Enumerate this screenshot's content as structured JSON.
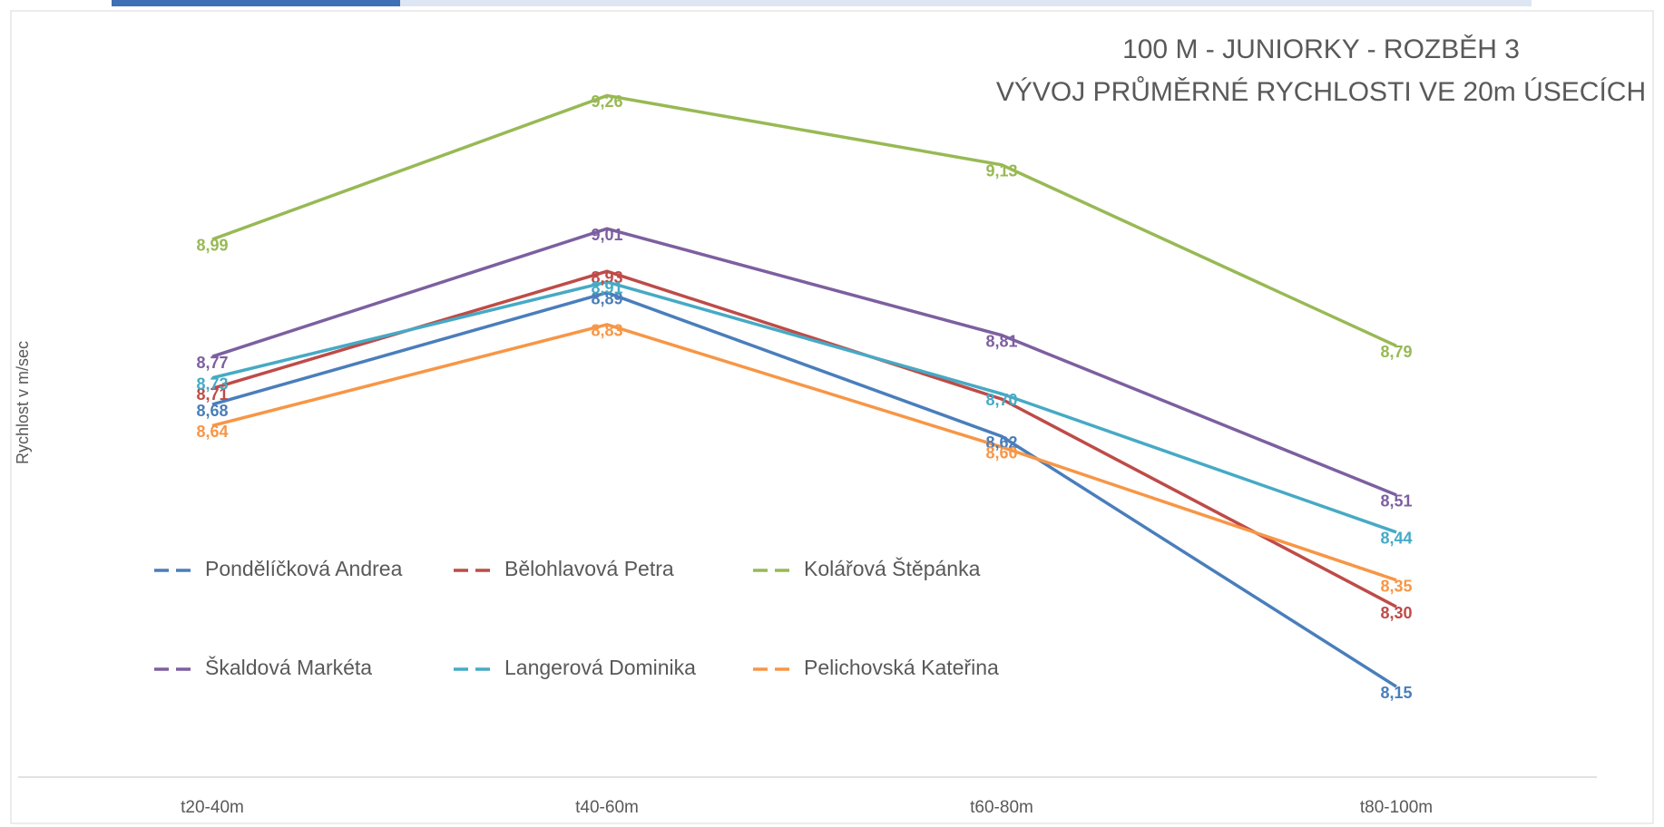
{
  "chart_data": {
    "type": "line",
    "title": [
      "100 M - JUNIORKY - ROZBĚH 3",
      "VÝVOJ PRŮMĚRNÉ RYCHLOSTI VE 20m ÚSECÍCH"
    ],
    "y_label": "Rychlost v m/sec",
    "categories": [
      "t20-40m",
      "t40-60m",
      "t60-80m",
      "t80-100m"
    ],
    "ylim": [
      7.98,
      9.38
    ],
    "series": [
      {
        "name": "Pondělíčková Andrea",
        "color": "#4a7ebb",
        "values": [
          8.68,
          8.89,
          8.62,
          8.15
        ],
        "value_labels": [
          "8,68",
          "8,89",
          "8,62",
          "8,15"
        ]
      },
      {
        "name": "Bělohlavová Petra",
        "color": "#be4b48",
        "values": [
          8.71,
          8.93,
          8.69,
          8.3
        ],
        "value_labels": [
          "8,71",
          "8,93",
          null,
          "8,30"
        ]
      },
      {
        "name": "Kolářová Štěpánka",
        "color": "#98b954",
        "values": [
          8.99,
          9.26,
          9.13,
          8.79
        ],
        "value_labels": [
          "8,99",
          "9,26",
          "9,13",
          "8,79"
        ]
      },
      {
        "name": "Škaldová Markéta",
        "color": "#7d5fa0",
        "values": [
          8.77,
          9.01,
          8.81,
          8.51
        ],
        "value_labels": [
          "8,77",
          "9,01",
          "8,81",
          "8,51"
        ]
      },
      {
        "name": "Langerová Dominika",
        "color": "#46aac5",
        "values": [
          8.73,
          8.91,
          8.7,
          8.44
        ],
        "value_labels": [
          "8,73",
          "8,91",
          "8,70",
          "8,44"
        ]
      },
      {
        "name": "Pelichovská Kateřina",
        "color": "#f79646",
        "values": [
          8.64,
          8.83,
          8.6,
          8.35
        ],
        "value_labels": [
          "8,64",
          "8,83",
          "8,60",
          "8,35"
        ]
      }
    ]
  }
}
